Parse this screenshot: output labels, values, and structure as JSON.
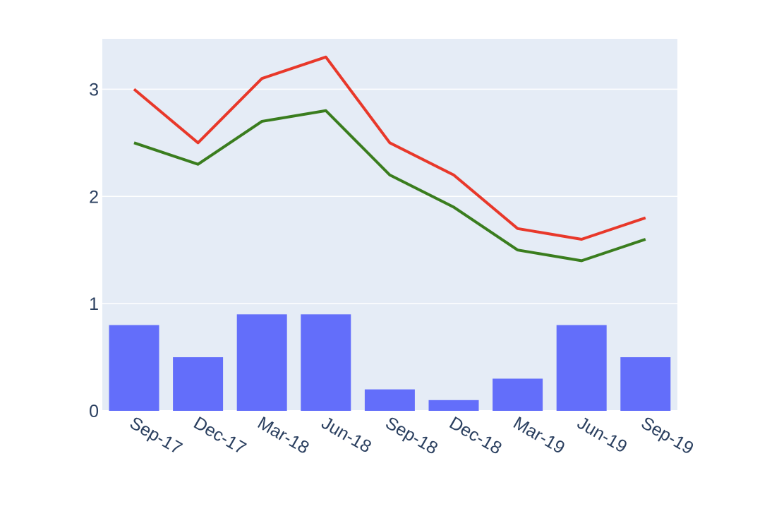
{
  "chart_data": {
    "type": "bar+line",
    "categories": [
      "Sep-17",
      "Dec-17",
      "Mar-18",
      "Jun-18",
      "Sep-18",
      "Dec-18",
      "Mar-19",
      "Jun-19",
      "Sep-19"
    ],
    "series": [
      {
        "type": "bar",
        "values": [
          0.8,
          0.5,
          0.9,
          0.9,
          0.2,
          0.1,
          0.3,
          0.8,
          0.5
        ]
      },
      {
        "type": "line",
        "values": [
          3.0,
          2.5,
          3.1,
          3.3,
          2.5,
          2.2,
          1.7,
          1.6,
          1.8
        ]
      },
      {
        "type": "line",
        "values": [
          2.5,
          2.3,
          2.7,
          2.8,
          2.2,
          1.9,
          1.5,
          1.4,
          1.6
        ]
      }
    ],
    "yticks": [
      0,
      1,
      2,
      3
    ],
    "ylim": [
      0,
      3.47
    ],
    "grid": true,
    "colors": {
      "bar": "#636efa",
      "line1": "#e8382a",
      "line2": "#3a7d1e",
      "plot_bg": "#e5ecf6",
      "tick_text": "#2a3f5f"
    }
  }
}
